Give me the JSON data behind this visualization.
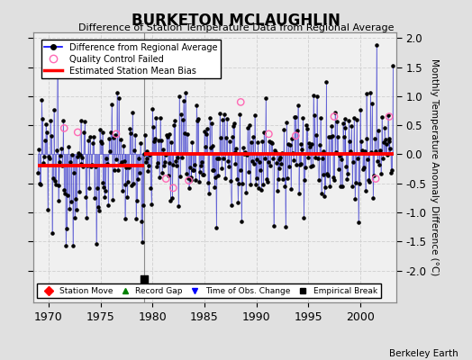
{
  "title": "BURKETON MCLAUGHLIN",
  "subtitle": "Difference of Station Temperature Data from Regional Average",
  "ylabel": "Monthly Temperature Anomaly Difference (°C)",
  "xlim": [
    1968.5,
    2003.5
  ],
  "ylim": [
    -2.55,
    2.1
  ],
  "yticks_right": [
    -2.0,
    -1.5,
    -1.0,
    -0.5,
    0.0,
    0.5,
    1.0,
    1.5,
    2.0
  ],
  "yticks_left": [
    -2.0,
    -1.5,
    -1.0,
    -0.5,
    0.0,
    0.5,
    1.0,
    1.5,
    2.0
  ],
  "xticks": [
    1970,
    1975,
    1980,
    1985,
    1990,
    1995,
    2000
  ],
  "bias1_start": 1969.0,
  "bias1_end": 1979.2,
  "bias1_value": -0.2,
  "bias2_start": 1979.2,
  "bias2_end": 2003.2,
  "bias2_value": 0.0,
  "break_year": 1979.2,
  "empirical_break_x": 1979.2,
  "empirical_break_y": -2.15,
  "background_color": "#e0e0e0",
  "plot_bg_color": "#f0f0f0",
  "line_color": "#3333cc",
  "dot_color": "#000000",
  "bias_color": "#ff0000",
  "seed": 12345
}
